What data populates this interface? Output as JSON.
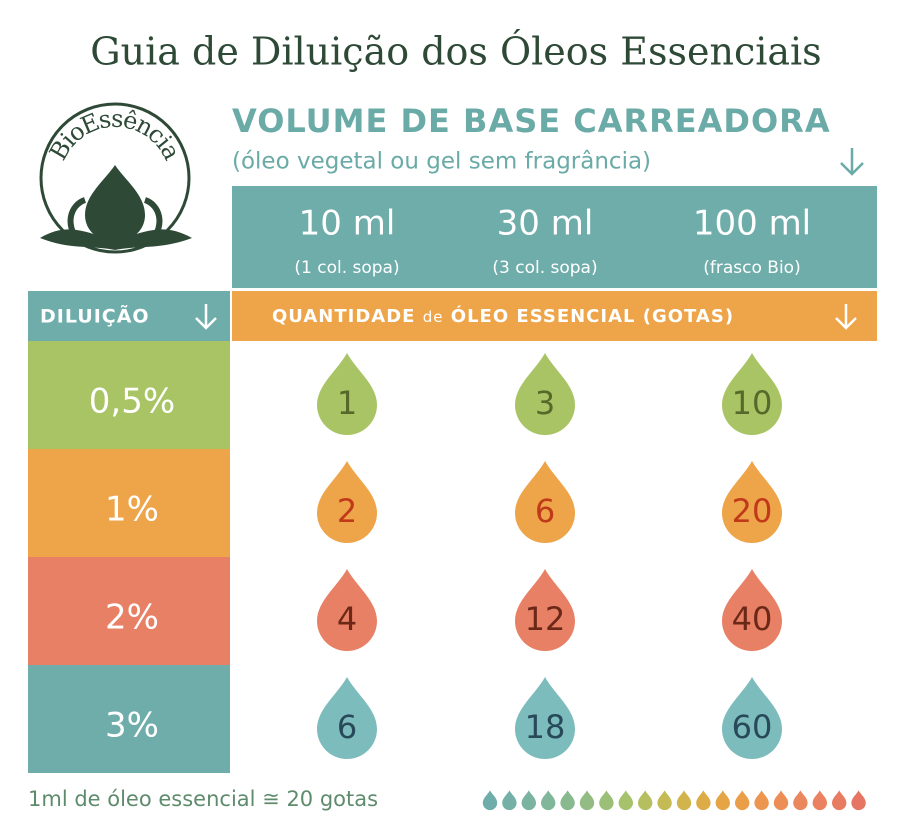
{
  "title": "Guia de Diluição dos Óleos Essenciais",
  "logo": "BioEssência",
  "header": {
    "title": "VOLUME DE BASE CARREADORA",
    "subtitle": "(óleo vegetal ou gel sem fragrância)"
  },
  "columns": [
    {
      "volume": "10 ml",
      "note": "(1 col. sopa)"
    },
    {
      "volume": "30 ml",
      "note": "(3 col. sopa)"
    },
    {
      "volume": "100 ml",
      "note": "(frasco Bio)"
    }
  ],
  "row_header": "DILUIÇÃO",
  "quantity_header": {
    "before": "QUANTIDADE",
    "middle": "de",
    "after": "ÓLEO ESSENCIAL (GOTAS)"
  },
  "rows": [
    {
      "dilution": "0,5%",
      "drops": [
        1,
        3,
        10
      ]
    },
    {
      "dilution": "1%",
      "drops": [
        2,
        6,
        20
      ]
    },
    {
      "dilution": "2%",
      "drops": [
        4,
        12,
        40
      ]
    },
    {
      "dilution": "3%",
      "drops": [
        6,
        18,
        60
      ]
    }
  ],
  "footer": "1ml de óleo essencial ≅ 20 gotas"
}
